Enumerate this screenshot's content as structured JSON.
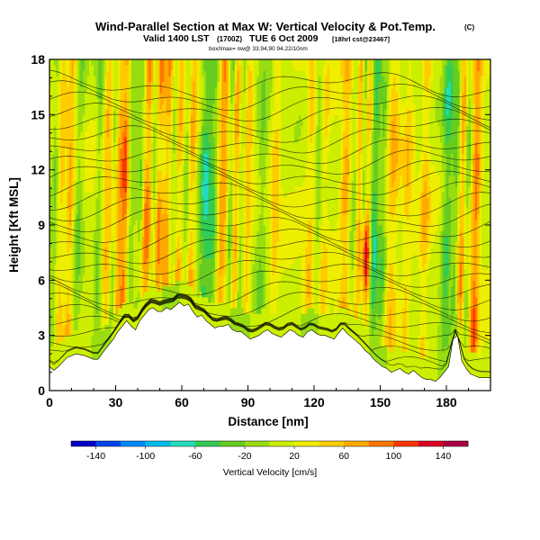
{
  "header": {
    "title": "Wind-Parallel Section at Max W: Vertical Velocity & Pot.Temp.",
    "copyright": "(C)",
    "valid_prefix": "Valid 1400 LST",
    "valid_z": "(1700Z)",
    "valid_date": "TUE 6 Oct 2009",
    "forecast": "[18hrl cst@23467]",
    "small_line": "box/lmax= nw@ 33.94,90 94.22/10nm"
  },
  "chart_data": {
    "type": "heatmap",
    "title": "Wind-Parallel Section at Max W: Vertical Velocity & Pot.Temp.",
    "xlabel": "Distance [nm]",
    "ylabel": "Height [Kft MSL]",
    "xlim": [
      0,
      200
    ],
    "ylim": [
      0,
      18
    ],
    "xticks": [
      0,
      30,
      60,
      90,
      120,
      150,
      180
    ],
    "yticks": [
      0,
      3,
      6,
      9,
      12,
      15,
      18
    ],
    "colorbar": {
      "label": "Vertical Velocity [cm/s]",
      "ticks": [
        -140,
        -100,
        -60,
        -20,
        20,
        60,
        100,
        140
      ],
      "range": [
        -160,
        160
      ],
      "colors": [
        "#0000c8",
        "#0044ee",
        "#0088ff",
        "#00bbee",
        "#22ddbb",
        "#33cc55",
        "#66cc22",
        "#99dd11",
        "#ccee00",
        "#eeee00",
        "#ffcc00",
        "#ffaa00",
        "#ff7700",
        "#ff3300",
        "#dd0022",
        "#aa0044"
      ]
    },
    "terrain": {
      "x": [
        0,
        2,
        4,
        8,
        12,
        16,
        20,
        22,
        25,
        27,
        29,
        31,
        33,
        35,
        37,
        39,
        41,
        43,
        45,
        47,
        49,
        51,
        53,
        55,
        57,
        59,
        61,
        63,
        65,
        67,
        69,
        71,
        73,
        75,
        77,
        79,
        81,
        83,
        85,
        87,
        89,
        91,
        93,
        95,
        97,
        99,
        101,
        103,
        105,
        107,
        109,
        111,
        113,
        115,
        117,
        119,
        121,
        123,
        125,
        127,
        129,
        131,
        133,
        135,
        137,
        139,
        141,
        143,
        145,
        147,
        149,
        151,
        153,
        155,
        157,
        159,
        161,
        163,
        165,
        167,
        169,
        171,
        173,
        175,
        177,
        179,
        181,
        183,
        185,
        187,
        189,
        191,
        193,
        195,
        197,
        200
      ],
      "y": [
        1.3,
        1.1,
        1.3,
        1.8,
        2.0,
        1.9,
        1.7,
        1.7,
        2.2,
        2.5,
        2.8,
        3.2,
        3.5,
        3.8,
        3.5,
        3.3,
        3.8,
        4.1,
        4.4,
        4.5,
        4.3,
        4.3,
        4.5,
        4.4,
        4.6,
        4.8,
        4.6,
        4.7,
        4.3,
        4.0,
        4.1,
        3.8,
        3.6,
        3.4,
        3.5,
        3.5,
        3.6,
        3.3,
        3.2,
        3.2,
        3.0,
        2.8,
        2.9,
        3.0,
        3.2,
        3.3,
        3.1,
        3.0,
        2.9,
        3.1,
        3.3,
        3.2,
        3.0,
        2.9,
        3.2,
        3.3,
        3.1,
        3.0,
        3.0,
        2.9,
        2.8,
        3.1,
        3.4,
        3.1,
        2.9,
        2.7,
        2.5,
        2.2,
        2.0,
        1.7,
        1.5,
        1.3,
        1.2,
        1.0,
        1.1,
        1.2,
        1.0,
        0.9,
        1.1,
        0.9,
        0.7,
        0.6,
        0.6,
        0.5,
        0.7,
        1.0,
        1.3,
        2.8,
        3.0,
        1.6,
        1.2,
        0.9,
        0.8,
        0.7,
        0.7,
        0.7
      ]
    },
    "updraft_bands": [
      {
        "x": 5,
        "w": 2,
        "v": 40
      },
      {
        "x": 9,
        "w": 1.5,
        "v": 60
      },
      {
        "x": 26,
        "w": 2,
        "v": 50
      },
      {
        "x": 31,
        "w": 2.5,
        "v": 70
      },
      {
        "x": 34,
        "w": 1.5,
        "v": 80
      },
      {
        "x": 44,
        "w": 2.5,
        "v": 80
      },
      {
        "x": 49,
        "w": 2,
        "v": 70
      },
      {
        "x": 53,
        "w": 2,
        "v": 60
      },
      {
        "x": 58,
        "w": 2,
        "v": 50
      },
      {
        "x": 64,
        "w": 2,
        "v": 60
      },
      {
        "x": 78,
        "w": 2.5,
        "v": 80
      },
      {
        "x": 84,
        "w": 2,
        "v": 70
      },
      {
        "x": 89,
        "w": 2,
        "v": 60
      },
      {
        "x": 102,
        "w": 2,
        "v": 40
      },
      {
        "x": 118,
        "w": 2,
        "v": 40
      },
      {
        "x": 124,
        "w": 2,
        "v": 40
      },
      {
        "x": 134,
        "w": 2.5,
        "v": 60
      },
      {
        "x": 140,
        "w": 2,
        "v": 80
      },
      {
        "x": 144,
        "w": 1.5,
        "v": 50
      },
      {
        "x": 155,
        "w": 3,
        "v": 50
      },
      {
        "x": 162,
        "w": 2,
        "v": 40
      },
      {
        "x": 170,
        "w": 2,
        "v": 45
      },
      {
        "x": 187,
        "w": 2,
        "v": 70
      },
      {
        "x": 193,
        "w": 2,
        "v": 90
      }
    ],
    "downdraft_bands": [
      {
        "x": 2,
        "w": 1.5,
        "v": -40
      },
      {
        "x": 13,
        "w": 2,
        "v": -40
      },
      {
        "x": 22,
        "w": 1.5,
        "v": -40
      },
      {
        "x": 29,
        "w": 1.5,
        "v": -50
      },
      {
        "x": 37,
        "w": 2,
        "v": -40
      },
      {
        "x": 41,
        "w": 1.5,
        "v": -50
      },
      {
        "x": 47,
        "w": 1.5,
        "v": -60
      },
      {
        "x": 56,
        "w": 1.5,
        "v": -40
      },
      {
        "x": 62,
        "w": 1.5,
        "v": -40
      },
      {
        "x": 70,
        "w": 2.5,
        "v": -80
      },
      {
        "x": 74,
        "w": 2.5,
        "v": -60
      },
      {
        "x": 82,
        "w": 1.5,
        "v": -60
      },
      {
        "x": 87,
        "w": 2,
        "v": -50
      },
      {
        "x": 96,
        "w": 2.5,
        "v": -40
      },
      {
        "x": 122,
        "w": 2,
        "v": -40
      },
      {
        "x": 138,
        "w": 2,
        "v": -50
      },
      {
        "x": 142,
        "w": 1.5,
        "v": -70
      },
      {
        "x": 147,
        "w": 2,
        "v": -80
      },
      {
        "x": 151,
        "w": 2,
        "v": -50
      },
      {
        "x": 180,
        "w": 2.5,
        "v": -70
      },
      {
        "x": 184,
        "w": 1.5,
        "v": -50
      },
      {
        "x": 189,
        "w": 1.5,
        "v": -50
      }
    ],
    "max_updraft": {
      "x": 143,
      "y": 7.5,
      "v": 150
    }
  },
  "colorbar_label": "Vertical Velocity [cm/s]"
}
